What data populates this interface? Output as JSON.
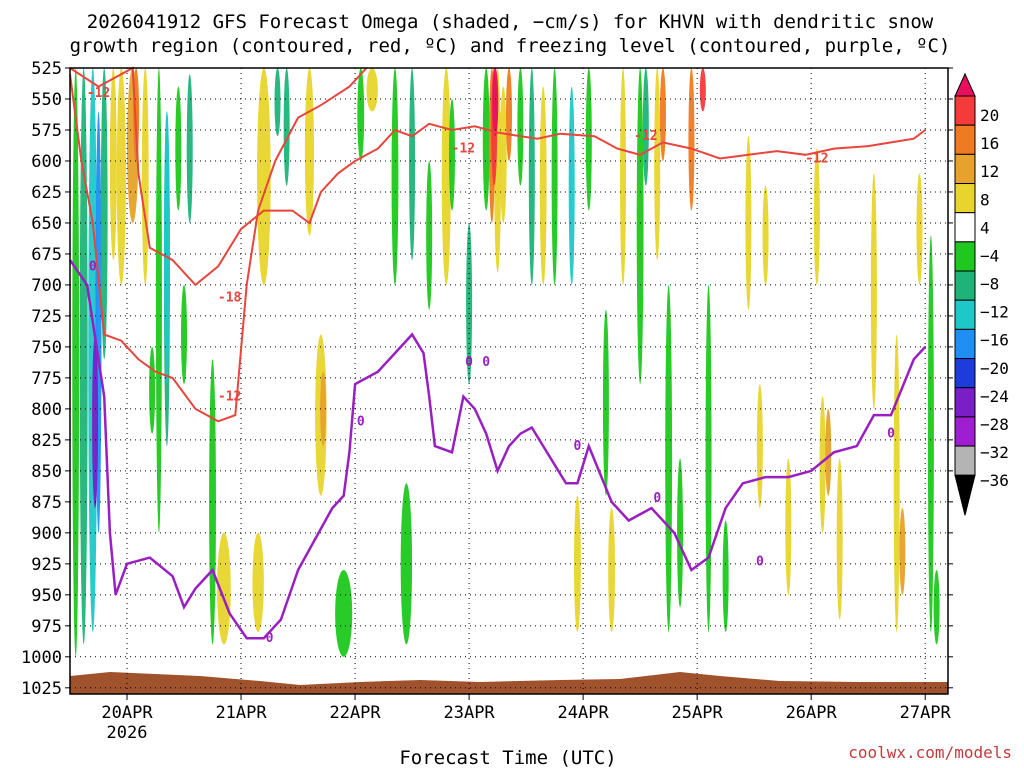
{
  "chart_data": {
    "type": "heatmap",
    "title_line1": "2026041912 GFS Forecast Omega (shaded, −cm/s) for KHVN with dendritic snow",
    "title_line2": "growth region (contoured, red, ºC) and freezing level (contoured, purple, ºC)",
    "xlabel": "Forecast Time (UTC)",
    "credit": "coolwx.com/models",
    "x_range_days": [
      0,
      7.7
    ],
    "x_ticks": [
      {
        "label": "20APR",
        "sub": "2026",
        "day": 0.5
      },
      {
        "label": "21APR",
        "day": 1.5
      },
      {
        "label": "22APR",
        "day": 2.5
      },
      {
        "label": "23APR",
        "day": 3.5
      },
      {
        "label": "24APR",
        "day": 4.5
      },
      {
        "label": "25APR",
        "day": 5.5
      },
      {
        "label": "26APR",
        "day": 6.5
      },
      {
        "label": "27APR",
        "day": 7.5
      }
    ],
    "y_ticks_hpa": [
      525,
      550,
      575,
      600,
      625,
      650,
      675,
      700,
      725,
      750,
      775,
      800,
      825,
      850,
      875,
      900,
      925,
      950,
      975,
      1000,
      1025
    ],
    "colorbar": {
      "labels": [
        "20",
        "16",
        "12",
        "8",
        "4",
        "−4",
        "−8",
        "−12",
        "−16",
        "−20",
        "−24",
        "−28",
        "−32",
        "−36"
      ],
      "colors": [
        "#e8105e",
        "#f53a3a",
        "#f07a20",
        "#e6a22a",
        "#e8d42c",
        "#ffffff",
        "#1ec81e",
        "#1eb478",
        "#1ec8c8",
        "#1e8ff5",
        "#1e3cdc",
        "#7a1ec8",
        "#a01ed2",
        "#b4b4b4",
        "#000000"
      ]
    },
    "contour_labels_red": [
      "-12",
      "-12",
      "-12",
      "-12",
      "-18",
      "-12"
    ],
    "contour_labels_purple": [
      "0",
      "0",
      "0",
      "0",
      "0",
      "0",
      "0",
      "0",
      "0"
    ],
    "freezing_level_hpa": [
      [
        0.0,
        680
      ],
      [
        0.15,
        700
      ],
      [
        0.3,
        790
      ],
      [
        0.35,
        900
      ],
      [
        0.4,
        950
      ],
      [
        0.5,
        925
      ],
      [
        0.7,
        920
      ],
      [
        0.9,
        935
      ],
      [
        1.0,
        960
      ],
      [
        1.1,
        945
      ],
      [
        1.25,
        930
      ],
      [
        1.4,
        965
      ],
      [
        1.55,
        985
      ],
      [
        1.7,
        985
      ],
      [
        1.85,
        970
      ],
      [
        2.0,
        930
      ],
      [
        2.15,
        905
      ],
      [
        2.3,
        880
      ],
      [
        2.4,
        870
      ],
      [
        2.45,
        835
      ],
      [
        2.5,
        780
      ],
      [
        2.7,
        770
      ],
      [
        2.85,
        755
      ],
      [
        3.0,
        740
      ],
      [
        3.1,
        755
      ],
      [
        3.15,
        790
      ],
      [
        3.2,
        830
      ],
      [
        3.35,
        835
      ],
      [
        3.45,
        790
      ],
      [
        3.55,
        800
      ],
      [
        3.65,
        820
      ],
      [
        3.75,
        850
      ],
      [
        3.85,
        830
      ],
      [
        3.95,
        820
      ],
      [
        4.05,
        815
      ],
      [
        4.15,
        830
      ],
      [
        4.35,
        860
      ],
      [
        4.45,
        860
      ],
      [
        4.55,
        830
      ],
      [
        4.75,
        875
      ],
      [
        4.9,
        890
      ],
      [
        5.1,
        880
      ],
      [
        5.3,
        900
      ],
      [
        5.45,
        930
      ],
      [
        5.6,
        920
      ],
      [
        5.75,
        880
      ],
      [
        5.9,
        860
      ],
      [
        6.1,
        855
      ],
      [
        6.3,
        855
      ],
      [
        6.5,
        850
      ],
      [
        6.7,
        835
      ],
      [
        6.9,
        830
      ],
      [
        7.05,
        805
      ],
      [
        7.2,
        805
      ],
      [
        7.4,
        760
      ],
      [
        7.5,
        750
      ]
    ],
    "dgz_minus12_hpa": [
      [
        0.0,
        525
      ],
      [
        0.25,
        540
      ],
      [
        0.55,
        525
      ],
      [
        0.6,
        610
      ],
      [
        0.7,
        670
      ],
      [
        0.9,
        680
      ],
      [
        1.1,
        700
      ],
      [
        1.3,
        685
      ],
      [
        1.5,
        655
      ],
      [
        1.7,
        640
      ],
      [
        1.95,
        640
      ],
      [
        2.1,
        650
      ],
      [
        2.2,
        625
      ],
      [
        2.35,
        610
      ],
      [
        2.5,
        600
      ],
      [
        2.7,
        590
      ],
      [
        2.85,
        575
      ],
      [
        3.0,
        580
      ],
      [
        3.15,
        570
      ],
      [
        3.35,
        575
      ],
      [
        3.55,
        572
      ],
      [
        3.75,
        577
      ],
      [
        3.95,
        580
      ],
      [
        4.1,
        582
      ],
      [
        4.3,
        578
      ],
      [
        4.6,
        580
      ],
      [
        4.8,
        590
      ],
      [
        5.0,
        595
      ],
      [
        5.2,
        585
      ],
      [
        5.45,
        590
      ],
      [
        5.7,
        598
      ],
      [
        5.95,
        595
      ],
      [
        6.2,
        592
      ],
      [
        6.45,
        595
      ],
      [
        6.7,
        590
      ],
      [
        7.0,
        588
      ],
      [
        7.2,
        585
      ],
      [
        7.4,
        582
      ],
      [
        7.5,
        575
      ]
    ],
    "dgz_minus18_hpa": [
      [
        0.0,
        530
      ],
      [
        0.1,
        600
      ],
      [
        0.2,
        650
      ],
      [
        0.3,
        740
      ],
      [
        0.45,
        745
      ],
      [
        0.6,
        760
      ],
      [
        0.75,
        770
      ],
      [
        0.9,
        775
      ],
      [
        1.1,
        800
      ],
      [
        1.3,
        810
      ],
      [
        1.45,
        805
      ],
      [
        1.55,
        700
      ],
      [
        1.65,
        640
      ],
      [
        1.8,
        600
      ],
      [
        2.0,
        565
      ],
      [
        2.2,
        555
      ],
      [
        2.45,
        540
      ],
      [
        2.6,
        525
      ]
    ]
  }
}
